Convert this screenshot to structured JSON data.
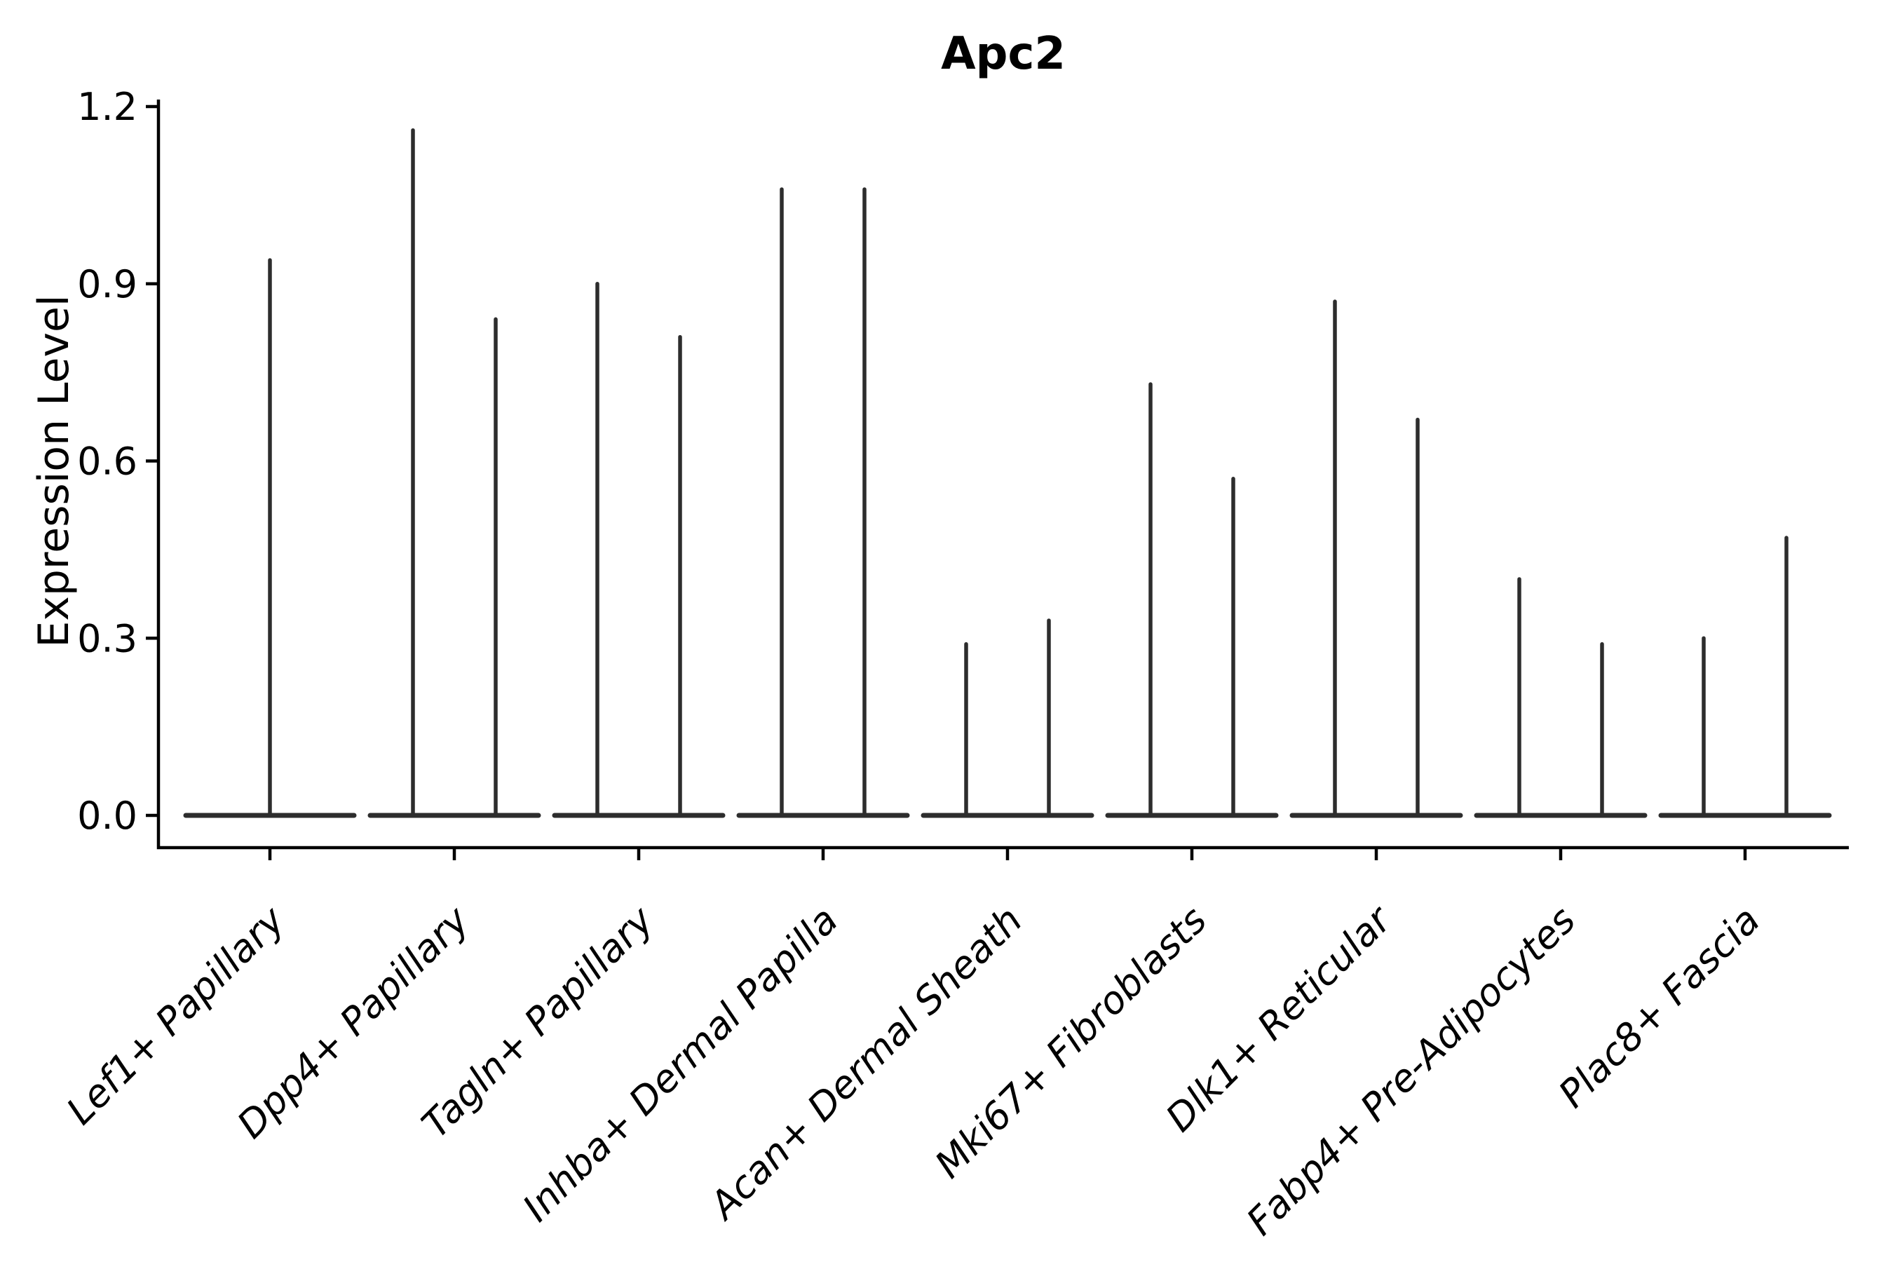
{
  "chart_data": {
    "type": "violin",
    "title": "Apc2",
    "xlabel": "",
    "ylabel": "Expression Level",
    "ylim": [
      -0.06,
      1.22
    ],
    "ytick_labels": [
      "0.0",
      "0.3",
      "0.6",
      "0.9",
      "1.2"
    ],
    "grid": false,
    "legend_position": "none",
    "categories": [
      "Lef1+ Papillary",
      "Dpp4+ Papillary",
      "Tagln+ Papillary",
      "Inhba+ Dermal Papilla",
      "Acan+ Dermal Sheath",
      "Mki67+ Fibroblasts",
      "Dlk1+ Reticular",
      "Fabp4+ Pre-Adipocytes",
      "Plac8+ Fascia"
    ],
    "violins": [
      {
        "category": "Lef1+ Papillary",
        "baseline_value": 0.0,
        "spike_maxima": [
          0.94
        ]
      },
      {
        "category": "Dpp4+ Papillary",
        "baseline_value": 0.0,
        "spike_maxima": [
          1.16,
          0.84
        ]
      },
      {
        "category": "Tagln+ Papillary",
        "baseline_value": 0.0,
        "spike_maxima": [
          0.9,
          0.81
        ]
      },
      {
        "category": "Inhba+ Dermal Papilla",
        "baseline_value": 0.0,
        "spike_maxima": [
          1.06,
          1.06
        ]
      },
      {
        "category": "Acan+ Dermal Sheath",
        "baseline_value": 0.0,
        "spike_maxima": [
          0.29,
          0.33
        ]
      },
      {
        "category": "Mki67+ Fibroblasts",
        "baseline_value": 0.0,
        "spike_maxima": [
          0.73,
          0.57
        ]
      },
      {
        "category": "Dlk1+ Reticular",
        "baseline_value": 0.0,
        "spike_maxima": [
          0.87,
          0.67
        ]
      },
      {
        "category": "Fabp4+ Pre-Adipocytes",
        "baseline_value": 0.0,
        "spike_maxima": [
          0.4,
          0.29
        ]
      },
      {
        "category": "Plac8+ Fascia",
        "baseline_value": 0.0,
        "spike_maxima": [
          0.3,
          0.47
        ]
      }
    ],
    "colors": {
      "violin_outline": "#2d2d2d",
      "axis": "#000000",
      "background": "#ffffff"
    }
  }
}
